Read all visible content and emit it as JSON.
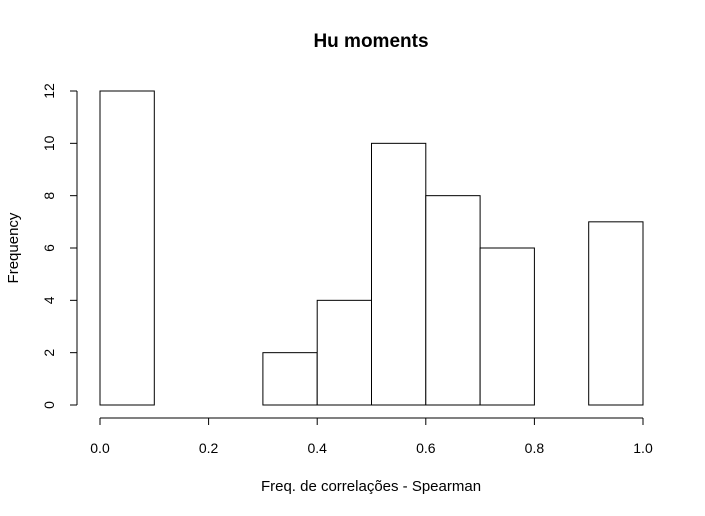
{
  "chart_data": {
    "type": "bar",
    "title": "Hu moments",
    "xlabel": "Freq. de correlações - Spearman",
    "ylabel": "Frequency",
    "bins": [
      {
        "from": 0.0,
        "to": 0.1,
        "count": 12
      },
      {
        "from": 0.1,
        "to": 0.2,
        "count": 0
      },
      {
        "from": 0.2,
        "to": 0.3,
        "count": 0
      },
      {
        "from": 0.3,
        "to": 0.4,
        "count": 2
      },
      {
        "from": 0.4,
        "to": 0.5,
        "count": 4
      },
      {
        "from": 0.5,
        "to": 0.6,
        "count": 10
      },
      {
        "from": 0.6,
        "to": 0.7,
        "count": 8
      },
      {
        "from": 0.7,
        "to": 0.8,
        "count": 6
      },
      {
        "from": 0.8,
        "to": 0.9,
        "count": 0
      },
      {
        "from": 0.9,
        "to": 1.0,
        "count": 7
      }
    ],
    "xlim": [
      0.0,
      1.0
    ],
    "ylim": [
      0,
      12
    ],
    "x_ticks": [
      0.0,
      0.2,
      0.4,
      0.6,
      0.8,
      1.0
    ],
    "x_tick_labels": [
      "0.0",
      "0.2",
      "0.4",
      "0.6",
      "0.8",
      "1.0"
    ],
    "y_ticks": [
      0,
      2,
      4,
      6,
      8,
      10,
      12
    ],
    "y_tick_labels": [
      "0",
      "2",
      "4",
      "6",
      "8",
      "10",
      "12"
    ],
    "grid": false,
    "legend": "none",
    "colors": {
      "bar_fill": "#ffffff",
      "bar_stroke": "#000000",
      "axis": "#000000",
      "background": "#ffffff"
    }
  }
}
